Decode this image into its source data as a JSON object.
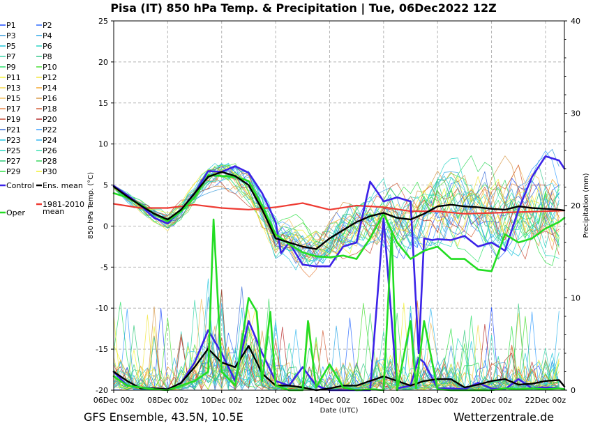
{
  "chart_data": {
    "type": "line",
    "title": "Pisa  (IT)  850 hPa Temp. & Precipitation | Tue, 06Dec2022 12Z",
    "xlabel": "Date (UTC)",
    "ylabel": "850 hPa Temp. (°C)",
    "y2label": "Precipitation (mm)",
    "x_ticks": [
      "06Dec 00z",
      "08Dec 00z",
      "10Dec 00z",
      "12Dec 00z",
      "14Dec 00z",
      "16Dec 00z",
      "18Dec 00z",
      "20Dec 00z",
      "22Dec 00z"
    ],
    "x_tick_days": [
      0,
      2,
      4,
      6,
      8,
      10,
      12,
      14,
      16
    ],
    "xlim_days": [
      0,
      16.7
    ],
    "ylim": [
      -20,
      25
    ],
    "y_ticks": [
      25,
      20,
      15,
      10,
      5,
      0,
      -5,
      -10,
      -15,
      -20
    ],
    "y2lim": [
      0,
      40
    ],
    "y2_ticks": [
      40,
      30,
      20,
      10,
      0
    ],
    "grid": true,
    "legend": {
      "placement": "left",
      "items": [
        {
          "label": "P1",
          "color": "#1f4bff"
        },
        {
          "label": "P2",
          "color": "#2d6bff"
        },
        {
          "label": "P3",
          "color": "#3a9bd9"
        },
        {
          "label": "P4",
          "color": "#2fa8e8"
        },
        {
          "label": "P5",
          "color": "#20c4d8"
        },
        {
          "label": "P6",
          "color": "#2bd4c4"
        },
        {
          "label": "P7",
          "color": "#3ad6a8"
        },
        {
          "label": "P8",
          "color": "#38c98c"
        },
        {
          "label": "P9",
          "color": "#2ee06a"
        },
        {
          "label": "P10",
          "color": "#4ce038"
        },
        {
          "label": "P11",
          "color": "#f2f23a"
        },
        {
          "label": "P12",
          "color": "#f2e640"
        },
        {
          "label": "P13",
          "color": "#f2d84a"
        },
        {
          "label": "P14",
          "color": "#f2a830"
        },
        {
          "label": "P15",
          "color": "#f2c060"
        },
        {
          "label": "P16",
          "color": "#d89a4a"
        },
        {
          "label": "P17",
          "color": "#e8884a"
        },
        {
          "label": "P18",
          "color": "#d4603a"
        },
        {
          "label": "P19",
          "color": "#c8503a"
        },
        {
          "label": "P20",
          "color": "#b83030"
        },
        {
          "label": "P21",
          "color": "#3a6cd8"
        },
        {
          "label": "P22",
          "color": "#3aa0ff"
        },
        {
          "label": "P23",
          "color": "#2ac8e0"
        },
        {
          "label": "P24",
          "color": "#38b8f0"
        },
        {
          "label": "P25",
          "color": "#2ad8c0"
        },
        {
          "label": "P26",
          "color": "#3ae0b0"
        },
        {
          "label": "P27",
          "color": "#2ec878"
        },
        {
          "label": "P28",
          "color": "#3ad860"
        },
        {
          "label": "P29",
          "color": "#30e048"
        },
        {
          "label": "P30",
          "color": "#f0f030"
        },
        {
          "label": "Control",
          "color": "#3b22e8"
        },
        {
          "label": "Ens. mean",
          "color": "#000000"
        },
        {
          "label": "Oper",
          "color": "#22dd22"
        },
        {
          "label": "1981-2010\nmean",
          "color": "#ee3b33"
        }
      ]
    },
    "series": [
      {
        "name": "Ens. mean",
        "role": "temperature",
        "color": "#000000",
        "x": [
          0,
          0.5,
          1,
          1.5,
          2,
          2.5,
          3,
          3.5,
          4,
          4.5,
          5,
          5.5,
          6,
          6.5,
          7,
          7.5,
          8,
          8.5,
          9,
          9.5,
          10,
          10.5,
          11,
          11.5,
          12,
          12.5,
          13,
          13.5,
          14,
          14.5,
          15,
          15.5,
          16,
          16.5,
          16.7
        ],
        "y": [
          4.8,
          3.6,
          2.5,
          1.5,
          0.8,
          2,
          4,
          6,
          6.6,
          6.1,
          5,
          2,
          -1.5,
          -2,
          -2.5,
          -2.8,
          -1.5,
          -0.5,
          0.5,
          1.2,
          1.6,
          1,
          0.8,
          1.5,
          2.4,
          2.6,
          2.4,
          2.3,
          2.1,
          2,
          2.4,
          2.2,
          2.1,
          2,
          1.9
        ]
      },
      {
        "name": "Control",
        "role": "temperature",
        "color": "#3b22e8",
        "x": [
          0,
          0.5,
          1,
          1.5,
          2,
          2.5,
          3,
          3.5,
          4,
          4.5,
          5,
          5.5,
          6,
          6.2,
          6.5,
          7,
          7.5,
          8,
          8.5,
          9,
          9.5,
          9.8,
          10,
          10.5,
          11,
          11.3,
          11.5,
          11.8,
          12,
          12.5,
          13,
          13.5,
          14,
          14.5,
          15,
          15.5,
          16,
          16.5,
          16.7
        ],
        "y": [
          4.9,
          3.8,
          2.5,
          1,
          0.3,
          2,
          4,
          6.7,
          6.6,
          7.3,
          6.5,
          4,
          0.5,
          -3.3,
          -2,
          -4.7,
          -4.9,
          -4.9,
          -2.5,
          -2,
          5.4,
          4,
          3,
          3.5,
          3,
          -15.5,
          -1.5,
          -1.7,
          -1.6,
          -1.7,
          -1.2,
          -2.5,
          -2,
          -3,
          2,
          6,
          8.5,
          8,
          7
        ]
      },
      {
        "name": "Oper",
        "role": "temperature",
        "color": "#22dd22",
        "x": [
          0,
          0.5,
          1,
          1.5,
          2,
          2.5,
          3,
          3.5,
          4,
          4.5,
          5,
          5.5,
          6,
          6.5,
          7,
          7.5,
          8,
          8.5,
          9,
          9.5,
          10,
          10.5,
          11,
          11.5,
          12,
          12.5,
          13,
          13.5,
          14,
          14.5,
          15,
          15.5,
          16,
          16.5,
          16.7
        ],
        "y": [
          4,
          3.5,
          2.6,
          1.5,
          0.6,
          1.8,
          3.5,
          6.2,
          6.1,
          6,
          5.5,
          2.5,
          -1,
          -2.2,
          -3.2,
          -3.7,
          -3.8,
          -3.6,
          -4,
          -1.5,
          1.5,
          -2,
          -4,
          -3,
          -2.5,
          -4,
          -4,
          -5.3,
          -5.5,
          -1,
          -2,
          -1.5,
          -0.3,
          0.5,
          1
        ]
      },
      {
        "name": "1981-2010 mean",
        "role": "temperature",
        "color": "#ee3b33",
        "x": [
          0,
          1,
          2,
          3,
          4,
          5,
          6,
          7,
          8,
          9,
          10,
          11,
          12,
          13,
          14,
          15,
          16,
          16.7
        ],
        "y": [
          2.7,
          2.2,
          2.2,
          2.6,
          2.2,
          2.0,
          2.3,
          2.8,
          2.0,
          2.5,
          2.3,
          1.8,
          1.8,
          1.5,
          1.6,
          1.7,
          1.8,
          1.9
        ]
      },
      {
        "name": "Control",
        "role": "precipitation",
        "color": "#3b22e8",
        "x": [
          0,
          0.5,
          1,
          1.5,
          2,
          2.5,
          3,
          3.5,
          4,
          4.5,
          5,
          5.5,
          6,
          6.5,
          7,
          7.5,
          8,
          8.5,
          9,
          9.5,
          10,
          10.5,
          11,
          11.3,
          11.5,
          12,
          12.5,
          13,
          13.5,
          14,
          14.5,
          15,
          15.5,
          16,
          16.5,
          16.7
        ],
        "y": [
          2,
          0.5,
          0.3,
          0.2,
          0.1,
          0.8,
          3,
          6.5,
          4,
          1,
          7.5,
          4,
          1,
          0.5,
          2.5,
          0.5,
          0,
          0,
          0,
          0,
          18.6,
          0.2,
          0.5,
          3.5,
          3,
          0.2,
          0.2,
          0.1,
          0.8,
          0.2,
          0.1,
          1.2,
          0.2,
          0.3,
          0.2,
          0.1
        ]
      },
      {
        "name": "Ens. mean",
        "role": "precipitation",
        "color": "#000000",
        "x": [
          0,
          0.5,
          1,
          1.5,
          2,
          2.5,
          3,
          3.5,
          4,
          4.5,
          5,
          5.5,
          6,
          6.5,
          7,
          7.5,
          8,
          8.5,
          9,
          9.5,
          10,
          10.5,
          11,
          11.5,
          12,
          12.5,
          13,
          13.5,
          14,
          14.5,
          15,
          15.5,
          16,
          16.5,
          16.7
        ],
        "y": [
          2,
          1,
          0.2,
          0.2,
          0.1,
          0.8,
          2.5,
          4.5,
          3,
          2.5,
          4.8,
          1.8,
          0.5,
          0.5,
          0.3,
          0,
          0.2,
          0.5,
          0.5,
          1,
          1.5,
          1,
          0.5,
          1,
          1.2,
          1.2,
          0.3,
          0.6,
          1,
          1.2,
          0.6,
          0.7,
          1,
          1.1,
          0.4
        ]
      },
      {
        "name": "Oper",
        "role": "precipitation",
        "color": "#22dd22",
        "x": [
          0,
          0.5,
          1,
          1.5,
          2,
          2.5,
          3,
          3.5,
          3.7,
          4,
          4.5,
          5,
          5.3,
          5.5,
          5.8,
          6,
          6.5,
          7,
          7.2,
          7.5,
          8,
          8.5,
          9,
          9.5,
          10,
          10.3,
          10.5,
          11,
          11.2,
          11.5,
          12,
          12.5,
          13,
          13.5,
          14,
          14.5,
          15,
          15.5,
          16,
          16.5,
          16.7
        ],
        "y": [
          1.5,
          0.5,
          0.3,
          0.1,
          0,
          0.5,
          1,
          2,
          18.5,
          2,
          0.5,
          10,
          8.5,
          1,
          8.5,
          0.5,
          0,
          0,
          7.5,
          0.3,
          2.8,
          0.3,
          0,
          0.1,
          0,
          17,
          0,
          7.5,
          0.2,
          7.5,
          0.1,
          0,
          0,
          0,
          0,
          0.2,
          0.1,
          0.2,
          0.1,
          0.2,
          0.1
        ]
      }
    ]
  },
  "footer": {
    "left": "GFS Ensemble, 43.5N, 10.5E",
    "right": "Wetterzentrale.de"
  }
}
